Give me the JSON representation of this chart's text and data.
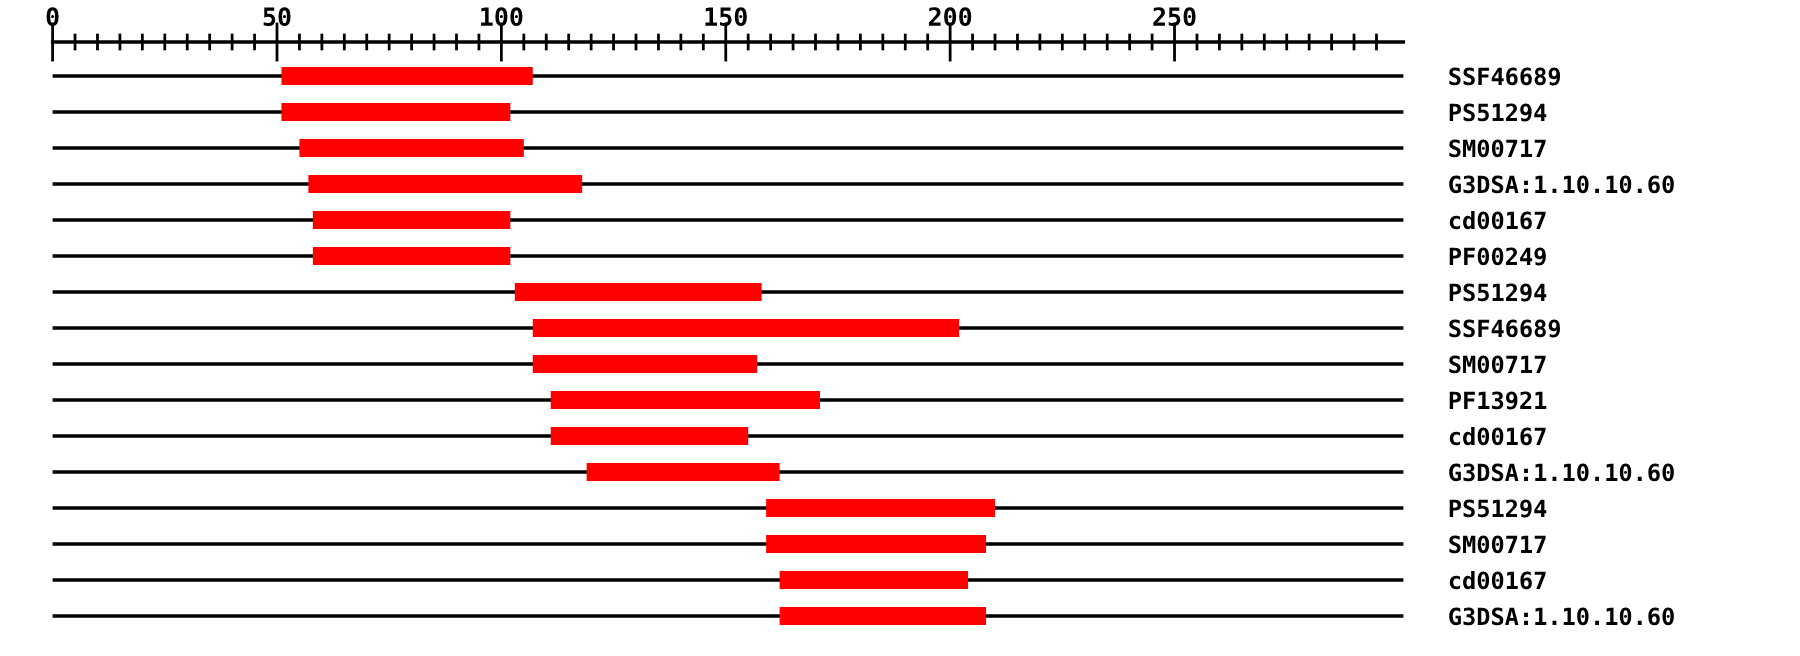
{
  "chart_data": {
    "type": "bar",
    "orientation": "horizontal",
    "categories": [
      "SSF46689",
      "PS51294",
      "SM00717",
      "G3DSA:1.10.10.60",
      "cd00167",
      "PF00249",
      "PS51294",
      "SSF46689",
      "SM00717",
      "PF13921",
      "cd00167",
      "G3DSA:1.10.10.60",
      "PS51294",
      "SM00717",
      "cd00167",
      "G3DSA:1.10.10.60"
    ],
    "base": [
      51,
      51,
      55,
      57,
      58,
      58,
      103,
      107,
      107,
      111,
      111,
      119,
      159,
      159,
      162,
      162
    ],
    "values": [
      56,
      51,
      50,
      61,
      44,
      44,
      55,
      95,
      50,
      60,
      44,
      43,
      51,
      49,
      42,
      46
    ],
    "color": "#ff0000",
    "xlim": [
      0,
      301
    ],
    "xticks": [
      0,
      {
        "value": 5,
        "label": null
      },
      {
        "value": 10,
        "label": null
      },
      {
        "value": 15,
        "label": null
      },
      {
        "value": 20,
        "label": null
      },
      {
        "value": 25,
        "label": null
      },
      {
        "value": 30,
        "label": null
      },
      {
        "value": 35,
        "label": null
      },
      {
        "value": 40,
        "label": null
      },
      {
        "value": 45,
        "label": null
      },
      50,
      {
        "value": 55,
        "label": null
      },
      {
        "value": 60,
        "label": null
      },
      {
        "value": 65,
        "label": null
      },
      {
        "value": 70,
        "label": null
      },
      {
        "value": 75,
        "label": null
      },
      {
        "value": 80,
        "label": null
      },
      {
        "value": 85,
        "label": null
      },
      {
        "value": 90,
        "label": null
      },
      {
        "value": 95,
        "label": null
      },
      100,
      {
        "value": 105,
        "label": null
      },
      {
        "value": 110,
        "label": null
      },
      {
        "value": 115,
        "label": null
      },
      {
        "value": 120,
        "label": null
      },
      {
        "value": 125,
        "label": null
      },
      {
        "value": 130,
        "label": null
      },
      {
        "value": 135,
        "label": null
      },
      {
        "value": 140,
        "label": null
      },
      {
        "value": 145,
        "label": null
      },
      150,
      {
        "value": 155,
        "label": null
      },
      {
        "value": 160,
        "label": null
      },
      {
        "value": 165,
        "label": null
      },
      {
        "value": 170,
        "label": null
      },
      {
        "value": 175,
        "label": null
      },
      {
        "value": 180,
        "label": null
      },
      {
        "value": 185,
        "label": null
      },
      {
        "value": 190,
        "label": null
      },
      {
        "value": 195,
        "label": null
      },
      200,
      {
        "value": 205,
        "label": null
      },
      {
        "value": 210,
        "label": null
      },
      {
        "value": 215,
        "label": null
      },
      {
        "value": 220,
        "label": null
      },
      {
        "value": 225,
        "label": null
      },
      {
        "value": 230,
        "label": null
      },
      {
        "value": 235,
        "label": null
      },
      {
        "value": 240,
        "label": null
      },
      {
        "value": 245,
        "label": null
      },
      250,
      {
        "value": 255,
        "label": null
      },
      {
        "value": 260,
        "label": null
      },
      {
        "value": 265,
        "label": null
      },
      {
        "value": 270,
        "label": null
      },
      {
        "value": 275,
        "label": null
      },
      {
        "value": 280,
        "label": null
      },
      {
        "value": 285,
        "label": null
      },
      {
        "value": 290,
        "label": null
      },
      {
        "value": 295,
        "label": null
      }
    ],
    "grid": "y"
  }
}
